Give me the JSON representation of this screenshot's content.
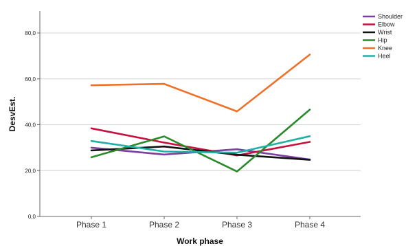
{
  "chart_data": {
    "type": "line",
    "xlabel": "Work phase",
    "ylabel": "DesvEst.",
    "categories": [
      "Phase 1",
      "Phase 2",
      "Phase 3",
      "Phase 4"
    ],
    "y_ticks": [
      "0,0",
      "20,0",
      "40,0",
      "60,0",
      "80,0"
    ],
    "ylim": [
      0,
      90
    ],
    "grid": "horizontal",
    "legend_position": "top-right",
    "series": [
      {
        "name": "Shoulder",
        "color": "#7b3fa0",
        "values": [
          30.0,
          27.0,
          29.3,
          24.8
        ]
      },
      {
        "name": "Elbow",
        "color": "#c8103e",
        "values": [
          38.4,
          32.2,
          26.6,
          32.5
        ]
      },
      {
        "name": "Wrist",
        "color": "#111111",
        "values": [
          28.8,
          30.5,
          26.9,
          24.7
        ]
      },
      {
        "name": "Hip",
        "color": "#2a8a2a",
        "values": [
          25.8,
          34.9,
          19.6,
          46.6
        ]
      },
      {
        "name": "Knee",
        "color": "#ee7029",
        "values": [
          57.2,
          57.8,
          45.8,
          70.6
        ]
      },
      {
        "name": "Heel",
        "color": "#1fb0a8",
        "values": [
          32.9,
          28.3,
          27.8,
          35.0
        ]
      }
    ]
  }
}
